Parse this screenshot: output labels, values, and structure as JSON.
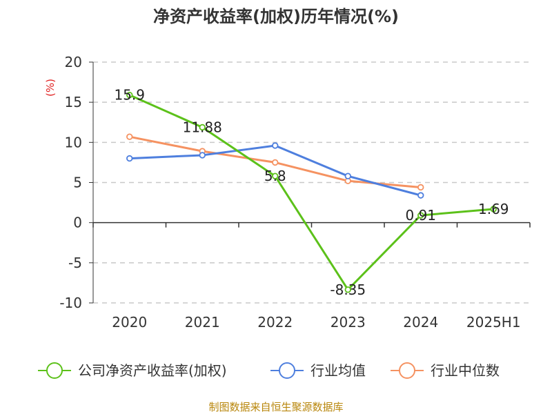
{
  "colors": {
    "company": "#5cc11a",
    "avg": "#4e7fde",
    "median": "#f59261",
    "unit": "#e02020",
    "source": "#b8860b",
    "grid": "#c8c8c8",
    "axis": "#333333"
  },
  "chart_data": {
    "type": "line",
    "title": "净资产收益率(加权)历年情况(%)",
    "ylabel": "(%)",
    "categories": [
      "2020",
      "2021",
      "2022",
      "2023",
      "2024",
      "2025H1"
    ],
    "ylim": [
      -10,
      20
    ],
    "yticks": [
      -10,
      -5,
      0,
      5,
      10,
      15,
      20
    ],
    "grid": true,
    "legend_position": "bottom",
    "series": [
      {
        "name": "公司净资产收益率(加权)",
        "color_key": "company",
        "values": [
          15.9,
          11.88,
          5.8,
          -8.35,
          0.91,
          1.69
        ],
        "labels": [
          "15.9",
          "11.88",
          "5.8",
          "-8.35",
          "0.91",
          "1.69"
        ]
      },
      {
        "name": "行业均值",
        "color_key": "avg",
        "values": [
          8.0,
          8.4,
          9.6,
          5.8,
          3.4,
          null
        ]
      },
      {
        "name": "行业中位数",
        "color_key": "median",
        "values": [
          10.7,
          8.9,
          7.5,
          5.2,
          4.4,
          null
        ]
      }
    ]
  },
  "source": "制图数据来自恒生聚源数据库"
}
